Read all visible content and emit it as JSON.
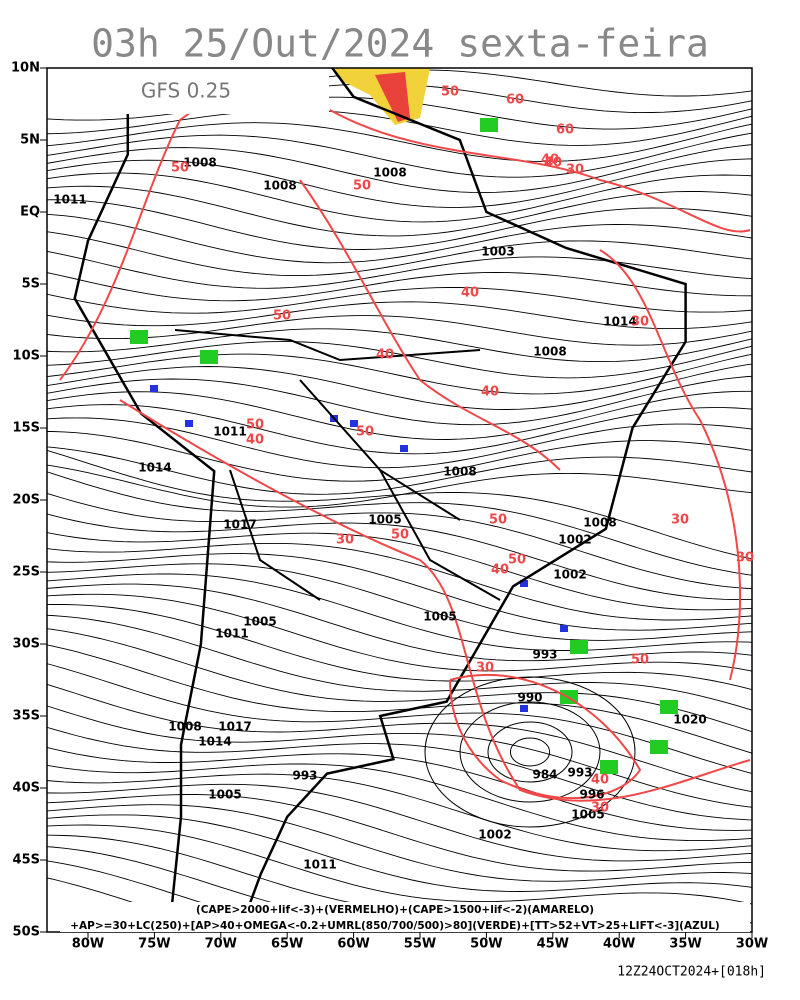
{
  "header": {
    "title": "03h 25/Out/2024 sexta-feira",
    "model": "GFS 0.25"
  },
  "axes": {
    "latitudes": [
      "10N",
      "5N",
      "EQ",
      "5S",
      "10S",
      "15S",
      "20S",
      "25S",
      "30S",
      "35S",
      "40S",
      "45S",
      "50S"
    ],
    "longitudes": [
      "80W",
      "75W",
      "70W",
      "65W",
      "60W",
      "55W",
      "50W",
      "45W",
      "40W",
      "35W",
      "30W"
    ]
  },
  "isobar_labels": [
    "1008",
    "1008",
    "1008",
    "1011",
    "1003",
    "1014",
    "1008",
    "1014",
    "1011",
    "1017",
    "1008",
    "1005",
    "1008",
    "1002",
    "1005",
    "1011",
    "1005",
    "1002",
    "993",
    "990",
    "984",
    "993",
    "996",
    "1005",
    "1020",
    "1008",
    "1017",
    "1014",
    "1005",
    "993",
    "1002",
    "1011"
  ],
  "contour_labels": [
    "50",
    "50",
    "60",
    "60",
    "40",
    "30",
    "50",
    "40",
    "50",
    "40",
    "30",
    "40",
    "50",
    "40",
    "50",
    "30",
    "50",
    "40",
    "30",
    "40",
    "30",
    "50",
    "50",
    "40",
    "30",
    "30",
    "50"
  ],
  "legend": {
    "line1": "(CAPE>2000+lif<-3)+(VERMELHO)+(CAPE>1500+lif<-2)(AMARELO)",
    "line2": "+AP>=30+LC(250)+[AP>40+OMEGA<-0.2+UMRL(850/700/500)>80](VERDE)+[TT>52+VT>25+LIFT<-3](AZUL)"
  },
  "footer": "12Z24OCT2024+[018h]"
}
